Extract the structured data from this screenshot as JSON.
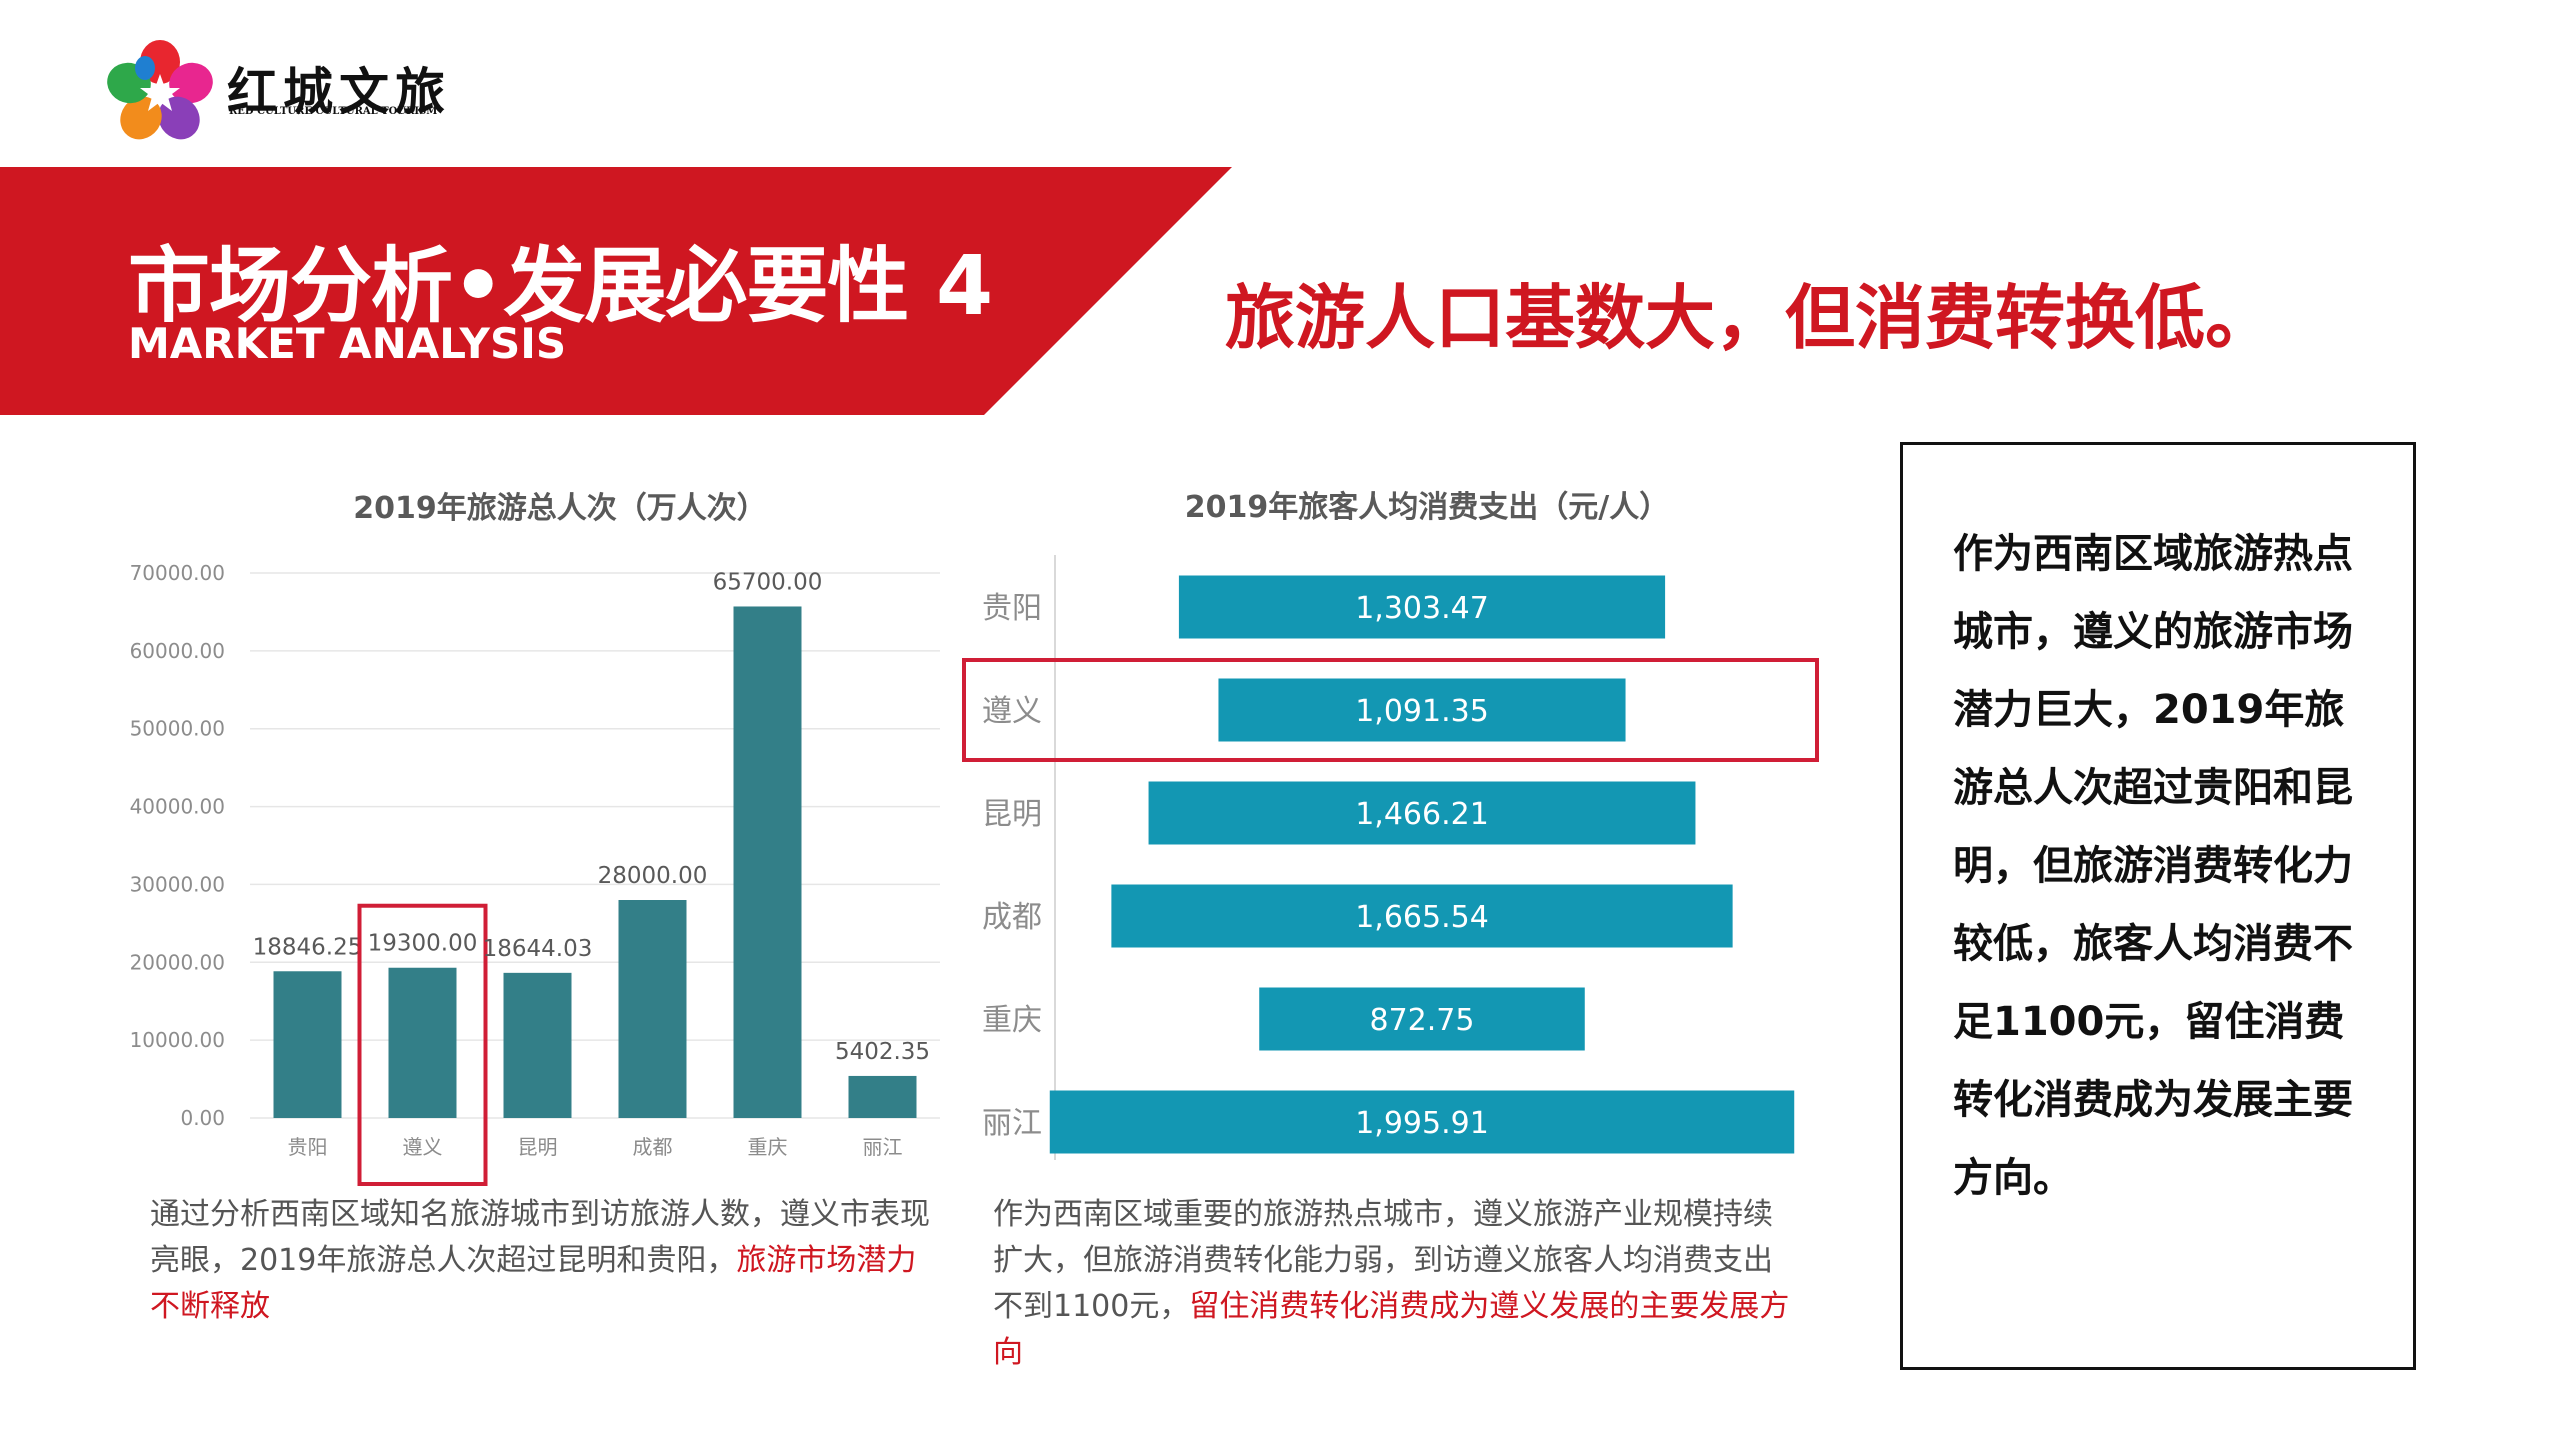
{
  "brand": {
    "name": "红城文旅",
    "subtitle": "RED CULTURE CULTURAL TOURISM"
  },
  "banner": {
    "title": "市场分析•发展必要性 4",
    "subtitle": "MARKET ANALYSIS"
  },
  "headline": "旅游人口基数大，但消费转换低。",
  "colors": {
    "brand_red": "#cf1721",
    "bar_teal": "#337f88",
    "bar_blue": "#1397b3",
    "highlight_red": "#d01e36"
  },
  "chart_data": [
    {
      "type": "bar",
      "title": "2019年旅游总人次（万人次）",
      "categories": [
        "贵阳",
        "遵义",
        "昆明",
        "成都",
        "重庆",
        "丽江"
      ],
      "values": [
        18846.25,
        19300.0,
        18644.03,
        28000.0,
        65700.0,
        5402.35
      ],
      "value_labels": [
        "18846.25",
        "19300.00",
        "18644.03",
        "28000.00",
        "65700.00",
        "5402.35"
      ],
      "yticks": [
        "0.00",
        "10000.00",
        "20000.00",
        "30000.00",
        "40000.00",
        "50000.00",
        "60000.00",
        "70000.00"
      ],
      "ylim": [
        0,
        70000
      ],
      "grid": true,
      "highlighted": "遵义"
    },
    {
      "type": "bar",
      "orientation": "horizontal",
      "title": "2019年旅客人均消费支出（元/人）",
      "categories": [
        "贵阳",
        "遵义",
        "昆明",
        "成都",
        "重庆",
        "丽江"
      ],
      "values": [
        1303.47,
        1091.35,
        1466.21,
        1665.54,
        872.75,
        1995.91
      ],
      "value_labels": [
        "1,303.47",
        "1,091.35",
        "1,466.21",
        "1,665.54",
        "872.75",
        "1,995.91"
      ],
      "xlim": [
        0,
        2000
      ],
      "highlighted": "遵义"
    }
  ],
  "caption1": {
    "text": "通过分析西南区域知名旅游城市到访旅游人数，遵义市表现亮眼，2019年旅游总人次超过昆明和贵阳，",
    "highlight": "旅游市场潜力不断释放"
  },
  "caption2": {
    "text": "作为西南区域重要的旅游热点城市，遵义旅游产业规模持续扩大，但旅游消费转化能力弱，到访遵义旅客人均消费支出不到1100元，",
    "highlight": "留住消费转化消费成为遵义发展的主要发展方向"
  },
  "summary": "作为西南区域旅游热点城市，遵义的旅游市场潜力巨大，2019年旅游总人次超过贵阳和昆明，但旅游消费转化力较低，旅客人均消费不足1100元，留住消费转化消费成为发展主要方向。"
}
